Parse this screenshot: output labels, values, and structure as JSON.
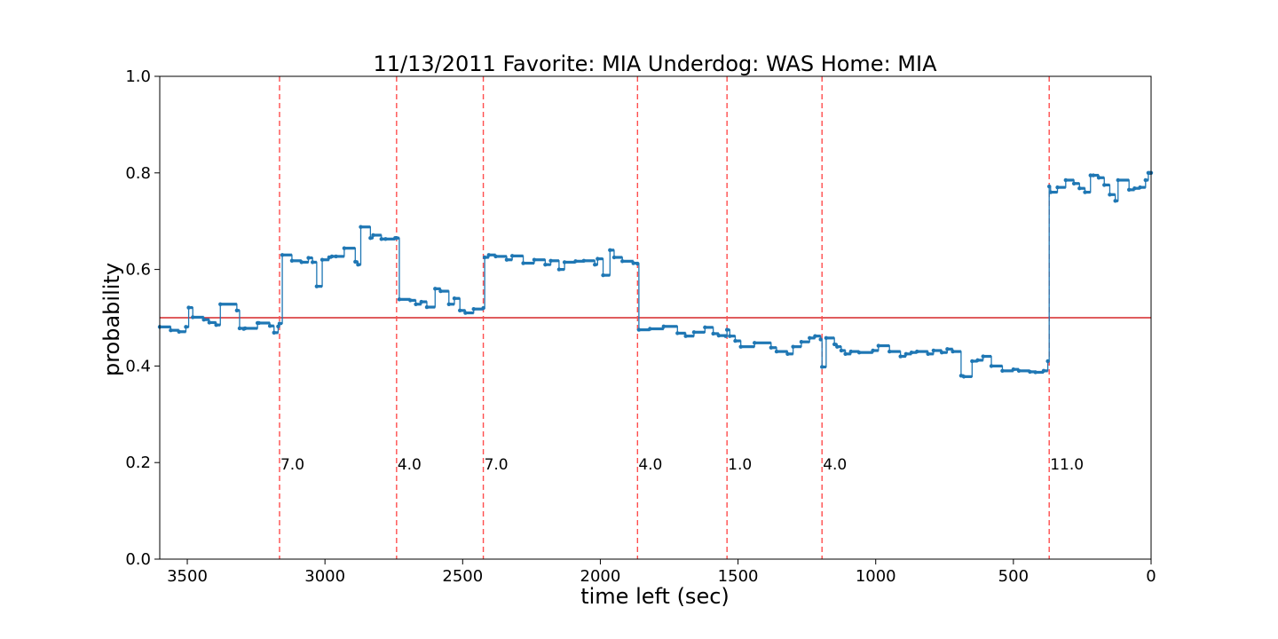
{
  "chart_data": {
    "type": "line",
    "title": "11/13/2011 Favorite: MIA Underdog: WAS Home: MIA",
    "xlabel": "time left (sec)",
    "ylabel": "probability",
    "xlim": [
      3600,
      0
    ],
    "ylim": [
      0.0,
      1.0
    ],
    "x_ticks": [
      3500,
      3000,
      2500,
      2000,
      1500,
      1000,
      500,
      0
    ],
    "y_ticks": [
      0.0,
      0.2,
      0.4,
      0.6,
      0.8,
      1.0
    ],
    "x_tick_labels": [
      "3500",
      "3000",
      "2500",
      "2000",
      "1500",
      "1000",
      "500",
      "0"
    ],
    "y_tick_labels": [
      "0.0",
      "0.2",
      "0.4",
      "0.6",
      "0.8",
      "1.0"
    ],
    "grid": false,
    "reference_line": {
      "y": 0.5,
      "color": "#d62728"
    },
    "series_color": "#1f77b4",
    "event_color": "#ff4d4d",
    "events": [
      {
        "x": 3165,
        "label": "7.0"
      },
      {
        "x": 2740,
        "label": "4.0"
      },
      {
        "x": 2425,
        "label": "7.0"
      },
      {
        "x": 1865,
        "label": "4.0"
      },
      {
        "x": 1540,
        "label": "1.0"
      },
      {
        "x": 1195,
        "label": "4.0"
      },
      {
        "x": 370,
        "label": "11.0"
      }
    ],
    "event_label_y": 0.2,
    "series": [
      {
        "x": [
          3600,
          3560,
          3530,
          3505,
          3495,
          3480,
          3440,
          3420,
          3395,
          3380,
          3320,
          3310,
          3295,
          3290,
          3245,
          3240,
          3200,
          3185,
          3170,
          3165,
          3155,
          3120,
          3085,
          3060,
          3045,
          3030,
          3010,
          2985,
          2975,
          2960,
          2930,
          2890,
          2880,
          2870,
          2835,
          2825,
          2795,
          2780,
          2745,
          2740,
          2730,
          2690,
          2670,
          2650,
          2630,
          2600,
          2580,
          2550,
          2530,
          2510,
          2490,
          2460,
          2425,
          2420,
          2405,
          2380,
          2340,
          2320,
          2280,
          2240,
          2200,
          2180,
          2150,
          2130,
          2090,
          2060,
          2020,
          2010,
          1990,
          1965,
          1950,
          1920,
          1880,
          1865,
          1860,
          1820,
          1770,
          1720,
          1690,
          1660,
          1620,
          1590,
          1570,
          1545,
          1540,
          1530,
          1510,
          1490,
          1440,
          1380,
          1360,
          1320,
          1300,
          1270,
          1240,
          1220,
          1200,
          1195,
          1180,
          1150,
          1140,
          1125,
          1110,
          1090,
          1060,
          1010,
          990,
          950,
          910,
          890,
          870,
          850,
          810,
          790,
          760,
          740,
          720,
          690,
          680,
          650,
          630,
          610,
          580,
          540,
          500,
          480,
          440,
          420,
          390,
          375,
          370,
          365,
          340,
          310,
          280,
          260,
          240,
          220,
          210,
          190,
          170,
          150,
          130,
          120,
          80,
          60,
          40,
          20,
          10,
          5,
          0
        ],
        "y": [
          0.481,
          0.474,
          0.471,
          0.481,
          0.521,
          0.501,
          0.496,
          0.49,
          0.485,
          0.528,
          0.515,
          0.478,
          0.477,
          0.478,
          0.489,
          0.489,
          0.483,
          0.469,
          0.482,
          0.488,
          0.63,
          0.618,
          0.615,
          0.624,
          0.615,
          0.565,
          0.62,
          0.625,
          0.627,
          0.627,
          0.644,
          0.616,
          0.61,
          0.688,
          0.665,
          0.671,
          0.663,
          0.663,
          0.665,
          0.665,
          0.538,
          0.536,
          0.528,
          0.533,
          0.522,
          0.56,
          0.555,
          0.528,
          0.54,
          0.515,
          0.51,
          0.518,
          0.52,
          0.625,
          0.63,
          0.627,
          0.62,
          0.628,
          0.613,
          0.62,
          0.61,
          0.618,
          0.6,
          0.615,
          0.617,
          0.618,
          0.61,
          0.622,
          0.588,
          0.64,
          0.625,
          0.617,
          0.613,
          0.612,
          0.475,
          0.477,
          0.482,
          0.468,
          0.462,
          0.47,
          0.48,
          0.467,
          0.463,
          0.462,
          0.475,
          0.462,
          0.452,
          0.44,
          0.448,
          0.438,
          0.43,
          0.425,
          0.44,
          0.45,
          0.458,
          0.462,
          0.455,
          0.398,
          0.458,
          0.445,
          0.44,
          0.432,
          0.425,
          0.43,
          0.428,
          0.432,
          0.442,
          0.43,
          0.42,
          0.425,
          0.428,
          0.43,
          0.425,
          0.432,
          0.428,
          0.435,
          0.43,
          0.38,
          0.378,
          0.41,
          0.412,
          0.42,
          0.4,
          0.39,
          0.393,
          0.39,
          0.388,
          0.387,
          0.39,
          0.41,
          0.772,
          0.76,
          0.77,
          0.785,
          0.778,
          0.768,
          0.76,
          0.795,
          0.795,
          0.79,
          0.775,
          0.755,
          0.742,
          0.785,
          0.765,
          0.768,
          0.77,
          0.785,
          0.8,
          0.8,
          0.8
        ]
      }
    ]
  }
}
